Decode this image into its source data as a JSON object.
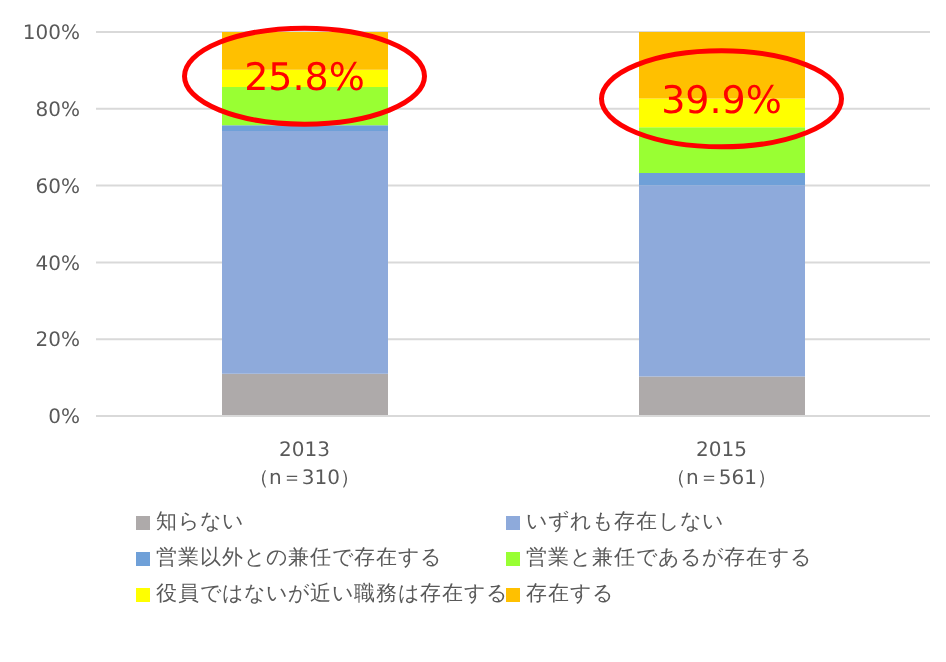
{
  "chart_data": {
    "type": "bar",
    "stacked": true,
    "categories": [
      "2013\n（n＝310）",
      "2015\n（n＝561）"
    ],
    "series": [
      {
        "name": "知らない",
        "color": "#aeaaaa",
        "values": [
          11,
          10.3
        ]
      },
      {
        "name": "いずれも存在しない",
        "color": "#8eaadb",
        "values": [
          63.2,
          49.8
        ]
      },
      {
        "name": "営業以外との兼任で存在する",
        "color": "#6fa0d8",
        "values": [
          1.5,
          3.2
        ]
      },
      {
        "name": "営業と兼任であるが存在する",
        "color": "#99ff33",
        "values": [
          10,
          11.9
        ]
      },
      {
        "name": "役員ではないが近い職務は存在する",
        "color": "#ffff00",
        "values": [
          4.5,
          7.5
        ]
      },
      {
        "name": "存在する",
        "color": "#ffc000",
        "values": [
          9.8,
          17.3
        ]
      }
    ],
    "ylim": [
      0,
      100
    ],
    "yticks": [
      {
        "value": 0,
        "label": "0%"
      },
      {
        "value": 20,
        "label": "20%"
      },
      {
        "value": 40,
        "label": "40%"
      },
      {
        "value": 60,
        "label": "60%"
      },
      {
        "value": 80,
        "label": "80%"
      },
      {
        "value": 100,
        "label": "100%"
      }
    ],
    "grid": "y",
    "legend": "bottom",
    "annotations": [
      {
        "text": "25.8%",
        "x": "2013\n（n＝310）",
        "y": 88.5
      },
      {
        "text": "39.9%",
        "x": "2015\n（n＝561）",
        "y": 82.6
      }
    ]
  }
}
